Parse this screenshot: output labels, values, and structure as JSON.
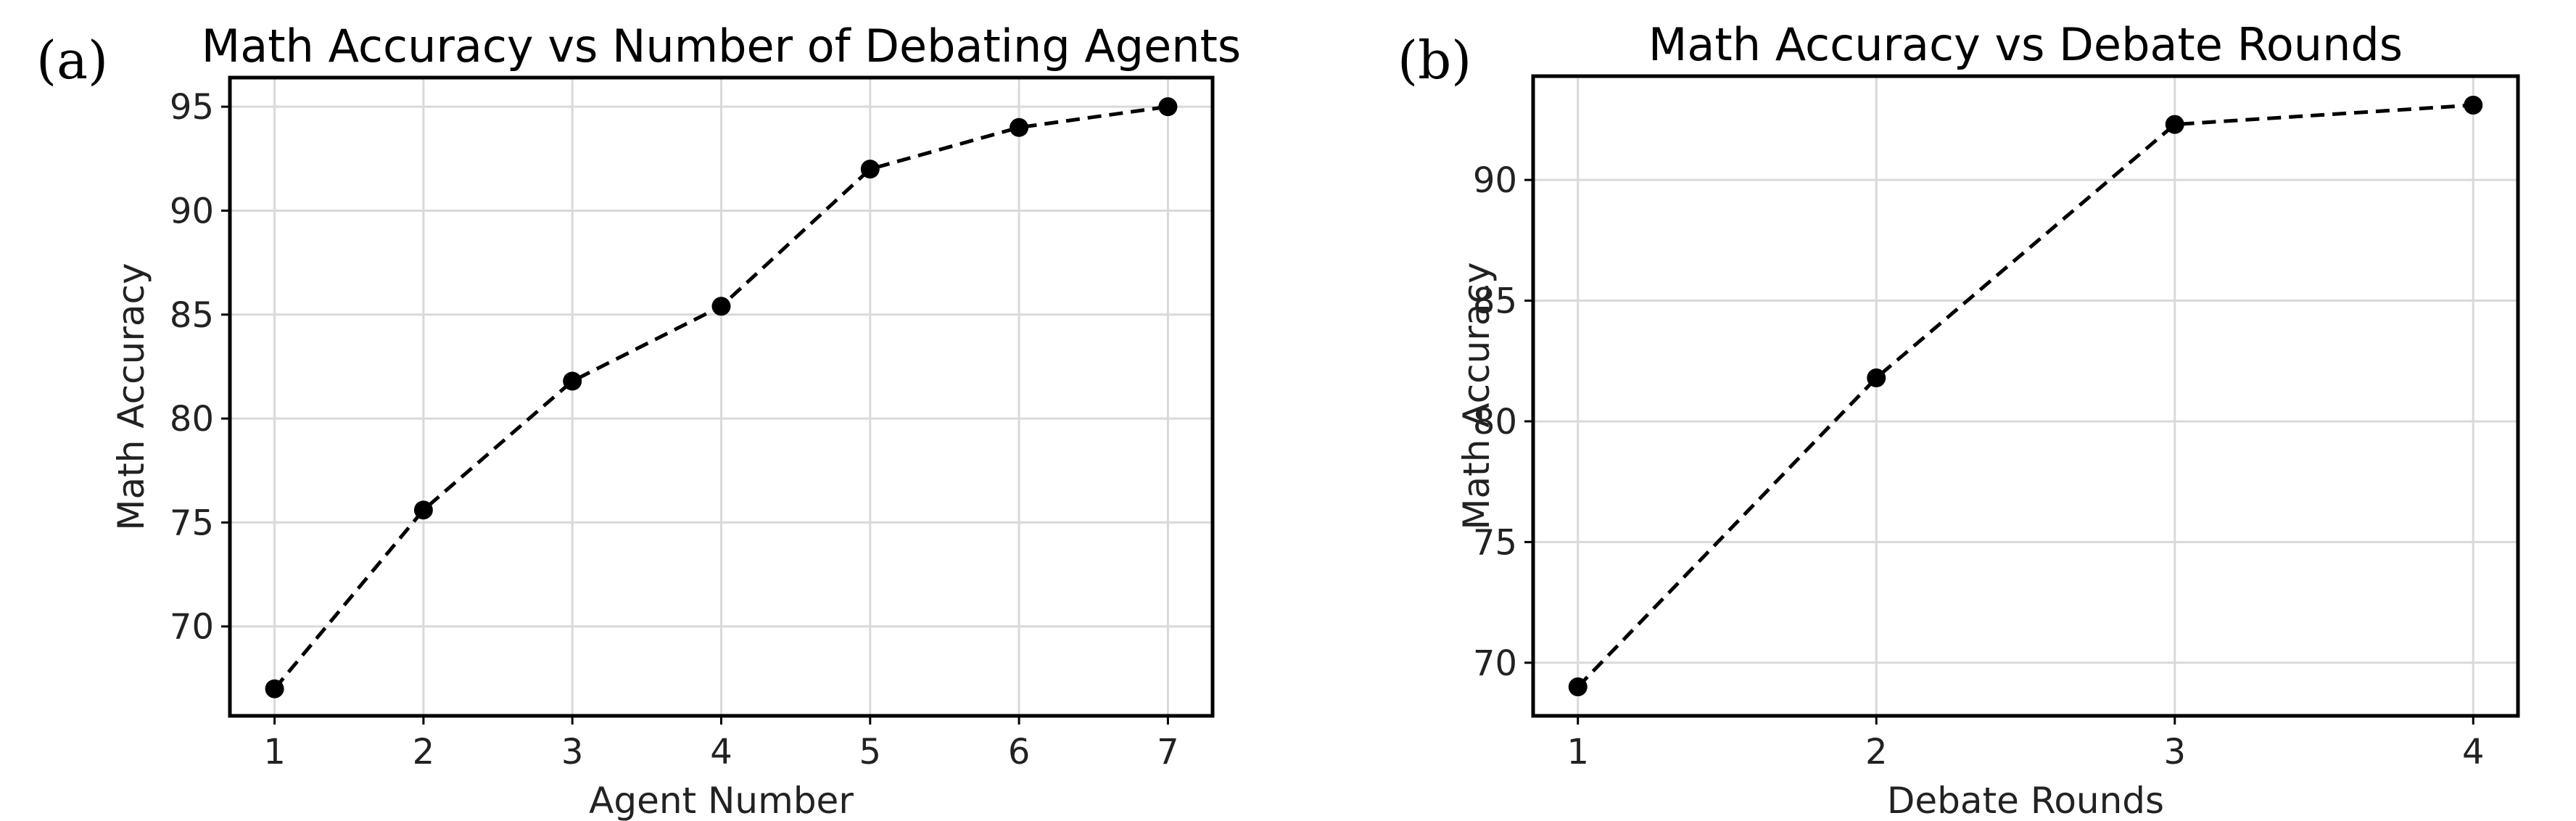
{
  "chart_data": [
    {
      "type": "line",
      "panel_label": "(a)",
      "title": "Math Accuracy vs Number of Debating Agents",
      "xlabel": "Agent Number",
      "ylabel": "Math Accuracy",
      "x": [
        1,
        2,
        3,
        4,
        5,
        6,
        7
      ],
      "y": [
        67.0,
        75.6,
        81.8,
        85.4,
        92.0,
        94.0,
        95.0
      ],
      "xticks": [
        1,
        2,
        3,
        4,
        5,
        6,
        7
      ],
      "yticks": [
        70,
        75,
        80,
        85,
        90,
        95
      ],
      "xlim": [
        0.7,
        7.3
      ],
      "ylim": [
        65.7,
        96.4
      ],
      "grid": true,
      "line_style": "dashed",
      "marker": "circle",
      "color": "#000000"
    },
    {
      "type": "line",
      "panel_label": "(b)",
      "title": "Math Accuracy vs Debate Rounds",
      "xlabel": "Debate Rounds",
      "ylabel": "Math Accuracy",
      "x": [
        1,
        2,
        3,
        4
      ],
      "y": [
        69.0,
        81.8,
        92.3,
        93.1
      ],
      "xticks": [
        1,
        2,
        3,
        4
      ],
      "yticks": [
        70,
        75,
        80,
        85,
        90
      ],
      "xlim": [
        0.85,
        4.15
      ],
      "ylim": [
        67.8,
        94.3
      ],
      "grid": true,
      "line_style": "dashed",
      "marker": "circle",
      "color": "#000000"
    }
  ]
}
